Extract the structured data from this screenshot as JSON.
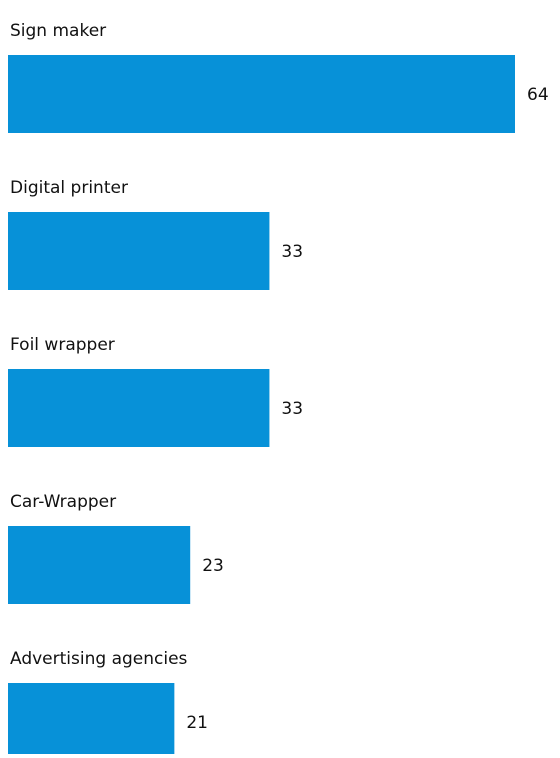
{
  "chart_data": {
    "type": "bar",
    "orientation": "horizontal",
    "categories": [
      "Sign maker",
      "Digital printer",
      "Foil wrapper",
      "Car-Wrapper",
      "Advertising agencies"
    ],
    "values": [
      64,
      33,
      33,
      23,
      21
    ],
    "title": "",
    "xlabel": "",
    "ylabel": "",
    "grid": false,
    "legend": "none",
    "bar_color": "#0791D8",
    "data_labels": true
  }
}
